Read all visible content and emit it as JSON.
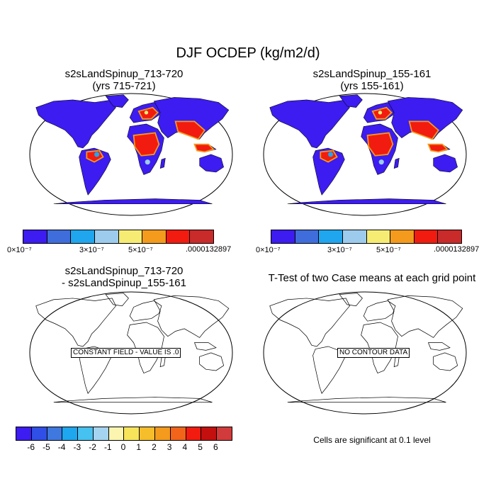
{
  "title": "DJF OCDEP (kg/m2/d)",
  "panels": [
    {
      "title_line1": "s2sLandSpinup_713-720",
      "title_line2": "(yrs 715-721)"
    },
    {
      "title_line1": "s2sLandSpinup_155-161",
      "title_line2": "(yrs 155-161)"
    },
    {
      "title_line1": "s2sLandSpinup_713-720",
      "title_line2": "- s2sLandSpinup_155-161",
      "message": "CONSTANT FIELD - VALUE IS .0"
    },
    {
      "title_line1": "T-Test of two Case means at each grid point",
      "message": "NO CONTOUR DATA"
    }
  ],
  "colorbar_top": {
    "colors": [
      "#3c1cf0",
      "#3f6edc",
      "#1fa6ee",
      "#9ccbee",
      "#f7ec73",
      "#f49a1c",
      "#f21b0f",
      "#c92a2a"
    ],
    "labels": [
      "0×10⁻⁷",
      "3×10⁻⁷",
      "5×10⁻⁷",
      ".0000132897"
    ]
  },
  "colorbar_bottom": {
    "colors": [
      "#3c1cf0",
      "#2f4fe6",
      "#3f78de",
      "#1ea6ee",
      "#46c1f0",
      "#a4d4ef",
      "#fbf5b0",
      "#f8e45a",
      "#f5be2a",
      "#f49a1c",
      "#f2641a",
      "#f21b0f",
      "#c40f0f",
      "#d23b3b"
    ],
    "ticks": [
      "-6",
      "-5",
      "-4",
      "-3",
      "-2",
      "-1",
      "0",
      "1",
      "2",
      "3",
      "4",
      "5",
      "6"
    ]
  },
  "note": "Cells are significant at 0.1 level"
}
